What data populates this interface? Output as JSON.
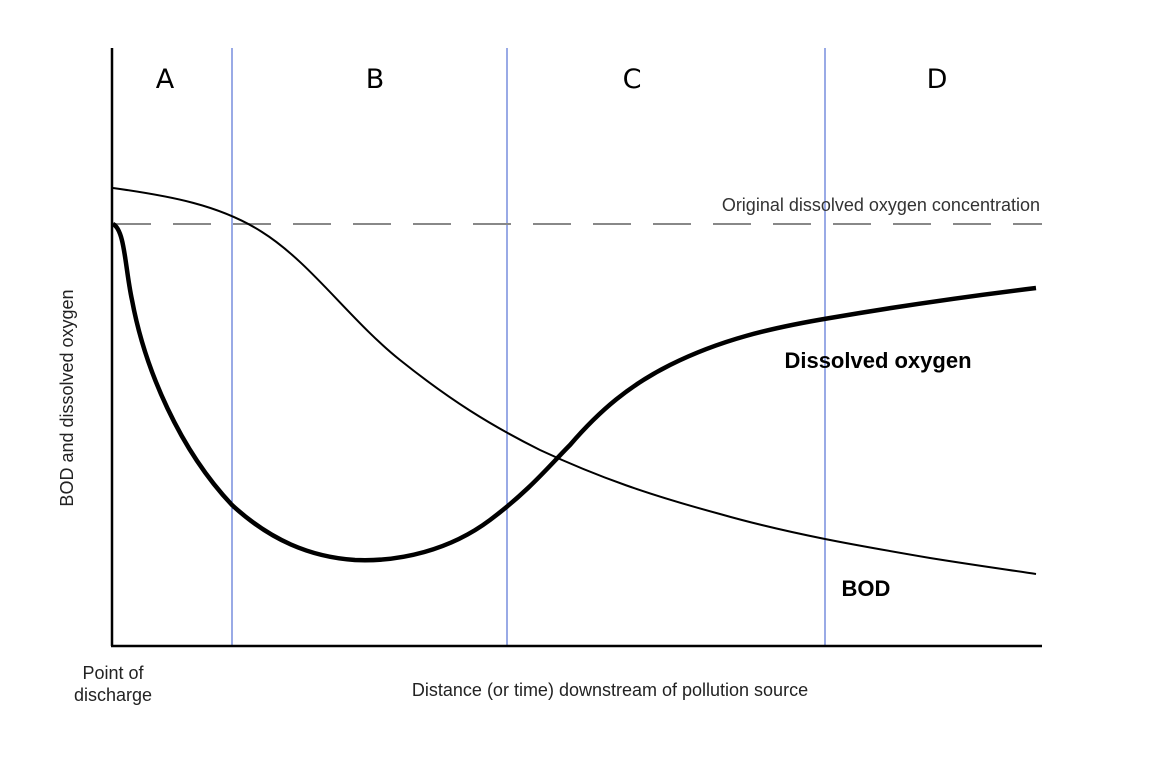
{
  "chart_data": {
    "type": "line",
    "title": "",
    "xlabel": "Distance (or time) downstream of pollution source",
    "ylabel": "BOD and dissolved oxygen",
    "origin_label": [
      "Point of",
      "discharge"
    ],
    "zones": [
      "A",
      "B",
      "C",
      "D"
    ],
    "reference_line": {
      "label": "Original dissolved oxygen concentration",
      "style": "dashed",
      "color": "#888888"
    },
    "series": [
      {
        "name": "Dissolved oxygen",
        "style": "thick",
        "color": "#000000"
      },
      {
        "name": "BOD",
        "style": "thin",
        "color": "#000000"
      }
    ],
    "zone_divider_color": "#3355cc",
    "grid": false,
    "axis_ticks": false
  }
}
